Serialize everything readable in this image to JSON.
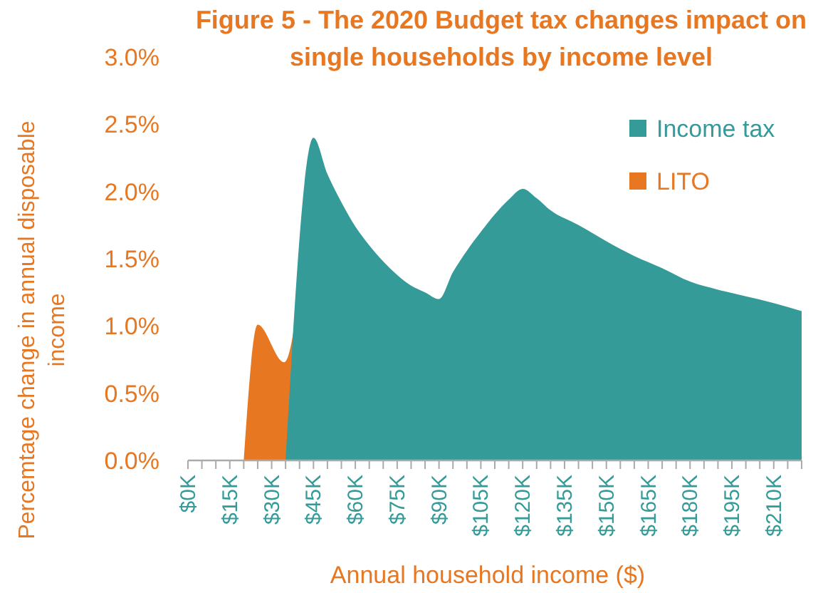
{
  "chart_data": {
    "type": "area",
    "title": "Figure 5 - The 2020 Budget tax changes impact on single households by income level",
    "xlabel": "Annual household income ($)",
    "ylabel": "Percemtage change in annual disposable income",
    "xlim": [
      0,
      220
    ],
    "xticks": [
      {
        "value": 0,
        "label": "$0K"
      },
      {
        "value": 5,
        "label": null
      },
      {
        "value": 10,
        "label": null
      },
      {
        "value": 15,
        "label": "$15K"
      },
      {
        "value": 20,
        "label": null
      },
      {
        "value": 25,
        "label": null
      },
      {
        "value": 30,
        "label": "$30K"
      },
      {
        "value": 35,
        "label": null
      },
      {
        "value": 40,
        "label": null
      },
      {
        "value": 45,
        "label": "$45K"
      },
      {
        "value": 50,
        "label": null
      },
      {
        "value": 55,
        "label": null
      },
      {
        "value": 60,
        "label": "$60K"
      },
      {
        "value": 65,
        "label": null
      },
      {
        "value": 70,
        "label": null
      },
      {
        "value": 75,
        "label": "$75K"
      },
      {
        "value": 80,
        "label": null
      },
      {
        "value": 85,
        "label": null
      },
      {
        "value": 90,
        "label": "$90K"
      },
      {
        "value": 95,
        "label": null
      },
      {
        "value": 100,
        "label": null
      },
      {
        "value": 105,
        "label": "$105K"
      },
      {
        "value": 110,
        "label": null
      },
      {
        "value": 115,
        "label": null
      },
      {
        "value": 120,
        "label": "$120K"
      },
      {
        "value": 125,
        "label": null
      },
      {
        "value": 130,
        "label": null
      },
      {
        "value": 135,
        "label": "$135K"
      },
      {
        "value": 140,
        "label": null
      },
      {
        "value": 145,
        "label": null
      },
      {
        "value": 150,
        "label": "$150K"
      },
      {
        "value": 155,
        "label": null
      },
      {
        "value": 160,
        "label": null
      },
      {
        "value": 165,
        "label": "$165K"
      },
      {
        "value": 170,
        "label": null
      },
      {
        "value": 175,
        "label": null
      },
      {
        "value": 180,
        "label": "$180K"
      },
      {
        "value": 185,
        "label": null
      },
      {
        "value": 190,
        "label": null
      },
      {
        "value": 195,
        "label": "$195K"
      },
      {
        "value": 200,
        "label": null
      },
      {
        "value": 205,
        "label": null
      },
      {
        "value": 210,
        "label": "$210K"
      },
      {
        "value": 215,
        "label": null
      },
      {
        "value": 220,
        "label": null
      }
    ],
    "ylim": [
      0,
      3
    ],
    "yticks": [
      {
        "value": 0,
        "label": "0.0%"
      },
      {
        "value": 0.5,
        "label": "0.5%"
      },
      {
        "value": 1,
        "label": "1.0%"
      },
      {
        "value": 1.5,
        "label": "1.5%"
      },
      {
        "value": 2,
        "label": "2.0%"
      },
      {
        "value": 2.5,
        "label": "2.5%"
      },
      {
        "value": 3,
        "label": "3.0%"
      }
    ],
    "grid": false,
    "legend": "top right",
    "series": [
      {
        "name": "LITO",
        "color": "#e87722",
        "x": [
          20,
          25,
          34.5,
          45
        ],
        "values": [
          0,
          1.01,
          0.73,
          2.4
        ]
      },
      {
        "name": "Income tax",
        "color": "#359b99",
        "x": [
          35,
          45,
          50,
          55,
          60,
          65,
          70,
          75,
          80,
          85,
          90,
          95,
          100,
          105,
          110,
          115,
          120,
          125,
          130,
          140,
          150,
          160,
          170,
          180,
          190,
          200,
          210,
          220
        ],
        "values": [
          0,
          2.4,
          2.13,
          1.92,
          1.74,
          1.6,
          1.48,
          1.38,
          1.3,
          1.25,
          1.2,
          1.4,
          1.56,
          1.7,
          1.83,
          1.94,
          2.02,
          1.95,
          1.86,
          1.75,
          1.63,
          1.52,
          1.43,
          1.33,
          1.27,
          1.22,
          1.17,
          1.11
        ]
      }
    ]
  }
}
